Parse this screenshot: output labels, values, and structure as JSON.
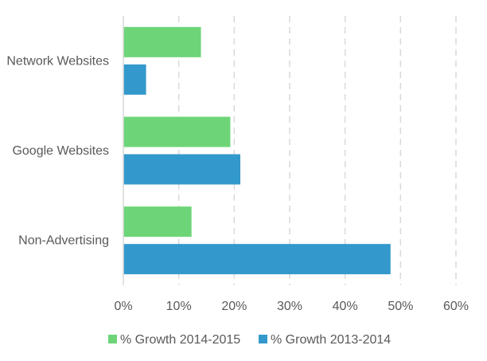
{
  "chart_data": {
    "type": "bar",
    "orientation": "horizontal",
    "categories": [
      "Network Websites",
      "Google Websites",
      "Non-Advertising"
    ],
    "series": [
      {
        "name": "% Growth 2014-2015",
        "values": [
          14,
          19.3,
          12.3
        ],
        "color": "#6dd578"
      },
      {
        "name": "% Growth 2013-2014",
        "values": [
          4.1,
          21.1,
          48.2
        ],
        "color": "#3399cc"
      }
    ],
    "xlim": [
      0,
      60
    ],
    "x_ticks": [
      "0%",
      "10%",
      "20%",
      "30%",
      "40%",
      "50%",
      "60%"
    ],
    "grid": "vertical dashed",
    "legend_position": "bottom"
  }
}
